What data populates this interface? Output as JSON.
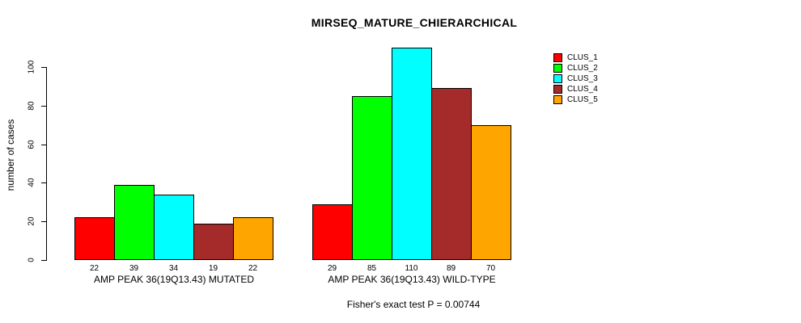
{
  "chart_data": {
    "type": "bar",
    "title": "MIRSEQ_MATURE_CHIERARCHICAL",
    "ylabel": "number of cases",
    "xlabel": "",
    "ylim": [
      0,
      110
    ],
    "yticks": [
      0,
      20,
      40,
      60,
      80,
      100
    ],
    "grid": false,
    "legend_position": "right",
    "categories": [
      "AMP PEAK 36(19Q13.43) MUTATED",
      "AMP PEAK 36(19Q13.43) WILD-TYPE"
    ],
    "series": [
      {
        "name": "CLUS_1",
        "color": "#FF0000",
        "values": [
          22,
          29
        ]
      },
      {
        "name": "CLUS_2",
        "color": "#00FF00",
        "values": [
          39,
          85
        ]
      },
      {
        "name": "CLUS_3",
        "color": "#00FFFF",
        "values": [
          34,
          110
        ]
      },
      {
        "name": "CLUS_4",
        "color": "#A52A2A",
        "values": [
          19,
          89
        ]
      },
      {
        "name": "CLUS_5",
        "color": "#FFA500",
        "values": [
          22,
          70
        ]
      }
    ],
    "bar_value_labels_shown": true,
    "annotation": "Fisher's exact test P = 0.00744",
    "background_color": "#FFFFFF",
    "bar_border_color": "#000000"
  }
}
